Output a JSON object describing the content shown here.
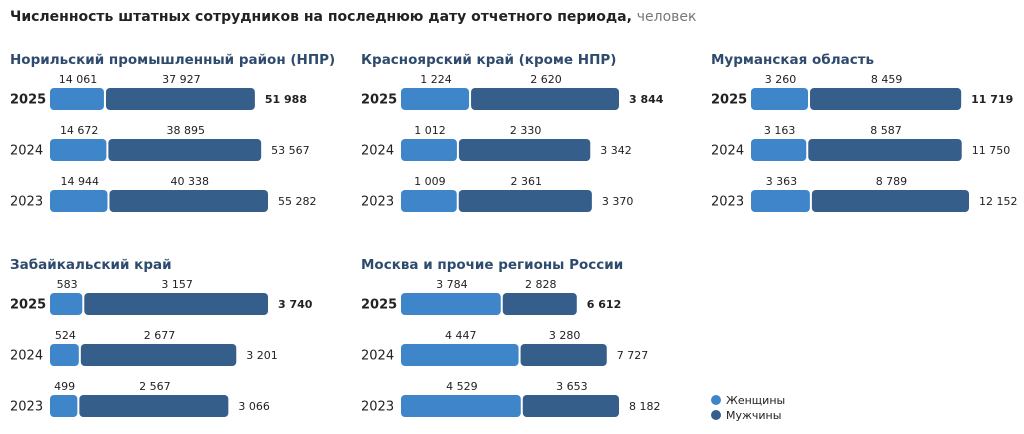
{
  "header": {
    "title": "Численность штатных сотрудников на последнюю дату отчетного периода,",
    "unit": "человек"
  },
  "chart_data": [
    {
      "type": "stacked-bar",
      "title": "Норильский промышленный район (НПР)",
      "categories": [
        "2025",
        "2024",
        "2023"
      ],
      "series": [
        {
          "name": "Женщины",
          "color": "#3e86c9",
          "values": [
            14061,
            14672,
            14944
          ],
          "value_labels": [
            "14 061",
            "14 672",
            "14 944"
          ]
        },
        {
          "name": "Мужчины",
          "color": "#365e8a",
          "values": [
            37927,
            38895,
            40338
          ],
          "value_labels": [
            "37 927",
            "38 895",
            "40 338"
          ]
        }
      ],
      "totals": [
        51988,
        53567,
        55282
      ],
      "total_labels": [
        "51 988",
        "53 567",
        "55 282"
      ]
    },
    {
      "type": "stacked-bar",
      "title": "Красноярский край (кроме НПР)",
      "categories": [
        "2025",
        "2024",
        "2023"
      ],
      "series": [
        {
          "name": "Женщины",
          "color": "#3e86c9",
          "values": [
            1224,
            1012,
            1009
          ],
          "value_labels": [
            "1 224",
            "1 012",
            "1 009"
          ]
        },
        {
          "name": "Мужчины",
          "color": "#365e8a",
          "values": [
            2620,
            2330,
            2361
          ],
          "value_labels": [
            "2 620",
            "2 330",
            "2 361"
          ]
        }
      ],
      "totals": [
        3844,
        3342,
        3370
      ],
      "total_labels": [
        "3 844",
        "3 342",
        "3 370"
      ]
    },
    {
      "type": "stacked-bar",
      "title": "Мурманская область",
      "categories": [
        "2025",
        "2024",
        "2023"
      ],
      "series": [
        {
          "name": "Женщины",
          "color": "#3e86c9",
          "values": [
            3260,
            3163,
            3363
          ],
          "value_labels": [
            "3 260",
            "3 163",
            "3 363"
          ]
        },
        {
          "name": "Мужчины",
          "color": "#365e8a",
          "values": [
            8459,
            8587,
            8789
          ],
          "value_labels": [
            "8 459",
            "8 587",
            "8 789"
          ]
        }
      ],
      "totals": [
        11719,
        11750,
        12152
      ],
      "total_labels": [
        "11 719",
        "11 750",
        "12 152"
      ]
    },
    {
      "type": "stacked-bar",
      "title": "Забайкальский край",
      "categories": [
        "2025",
        "2024",
        "2023"
      ],
      "series": [
        {
          "name": "Женщины",
          "color": "#3e86c9",
          "values": [
            583,
            524,
            499
          ],
          "value_labels": [
            "583",
            "524",
            "499"
          ]
        },
        {
          "name": "Мужчины",
          "color": "#365e8a",
          "values": [
            3157,
            2677,
            2567
          ],
          "value_labels": [
            "3 157",
            "2 677",
            "2 567"
          ]
        }
      ],
      "totals": [
        3740,
        3201,
        3066
      ],
      "total_labels": [
        "3 740",
        "3 201",
        "3 066"
      ]
    },
    {
      "type": "stacked-bar",
      "title": "Москва и прочие регионы России",
      "categories": [
        "2025",
        "2024",
        "2023"
      ],
      "series": [
        {
          "name": "Женщины",
          "color": "#3e86c9",
          "values": [
            3784,
            4447,
            4529
          ],
          "value_labels": [
            "3 784",
            "4 447",
            "4 529"
          ]
        },
        {
          "name": "Мужчины",
          "color": "#365e8a",
          "values": [
            2828,
            3280,
            3653
          ],
          "value_labels": [
            "2 828",
            "3 280",
            "3 653"
          ]
        }
      ],
      "totals": [
        6612,
        7727,
        8182
      ],
      "total_labels": [
        "6 612",
        "7 727",
        "8 182"
      ]
    }
  ]
}
